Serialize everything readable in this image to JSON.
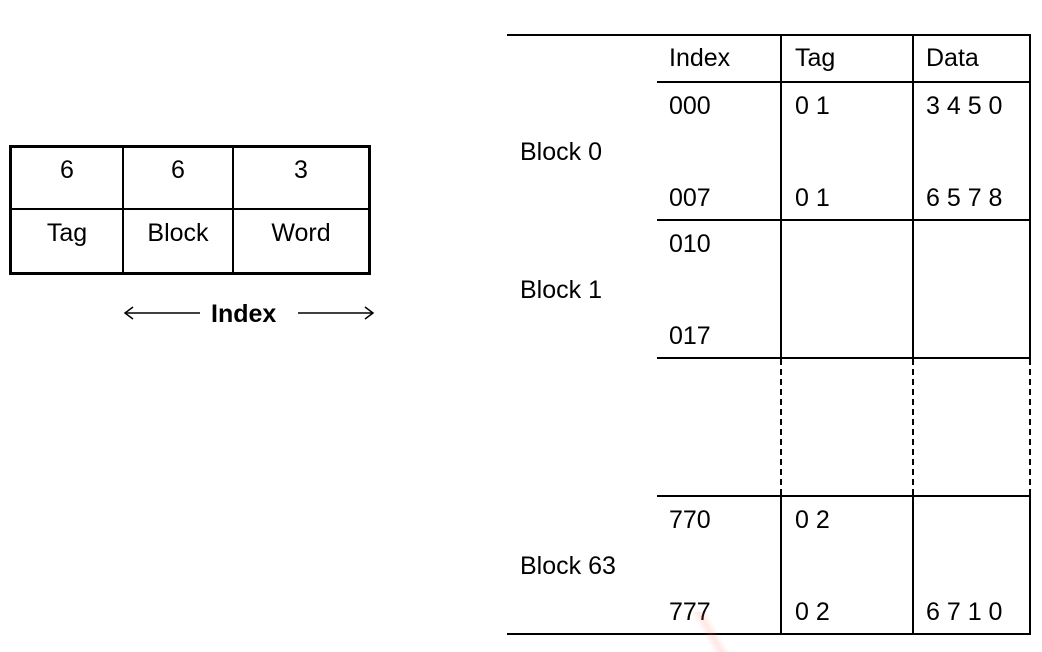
{
  "address_format": {
    "bits": [
      "6",
      "6",
      "3"
    ],
    "fields": [
      "Tag",
      "Block",
      "Word"
    ],
    "index_label": "Index"
  },
  "cache_table": {
    "headers": {
      "index": "Index",
      "tag": "Tag",
      "data": "Data"
    },
    "blocks": [
      {
        "name": "Block 0",
        "first": {
          "index": "000",
          "tag": "0 1",
          "data": "3 4 5 0"
        },
        "last": {
          "index": "007",
          "tag": "0 1",
          "data": "6 5 7 8"
        }
      },
      {
        "name": "Block 1",
        "first": {
          "index": "010",
          "tag": "",
          "data": ""
        },
        "last": {
          "index": "017",
          "tag": "",
          "data": ""
        }
      },
      {
        "name": "Block 63",
        "first": {
          "index": "770",
          "tag": "0 2",
          "data": ""
        },
        "last": {
          "index": "777",
          "tag": "0 2",
          "data": "6 7 1 0"
        }
      }
    ]
  }
}
